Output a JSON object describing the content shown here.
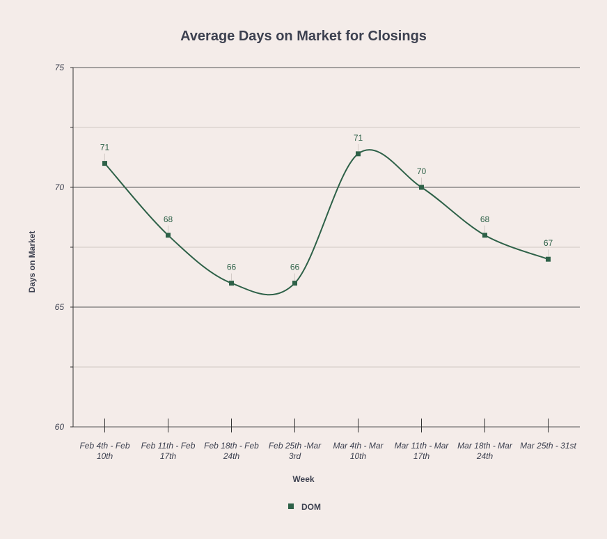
{
  "chart_data": {
    "type": "line",
    "title": "Average Days on Market for Closings",
    "xlabel": "Week",
    "ylabel": "Days on Market",
    "ylim": [
      60,
      75
    ],
    "y_ticks": [
      "60",
      "65",
      "70",
      "75"
    ],
    "grid": true,
    "smooth": true,
    "legend_position": "bottom",
    "categories": [
      [
        "Feb 4th - Feb",
        "10th"
      ],
      [
        "Feb 11th - Feb",
        "17th"
      ],
      [
        "Feb 18th - Feb",
        "24th"
      ],
      [
        "Feb 25th -Mar",
        "3rd"
      ],
      [
        "Mar 4th - Mar",
        "10th"
      ],
      [
        "Mar 11th - Mar",
        "17th"
      ],
      [
        "Mar 18th - Mar",
        "24th"
      ],
      [
        "Mar 25th - 31st"
      ]
    ],
    "series": [
      {
        "name": "DOM",
        "color": "#2e6148",
        "values": [
          71,
          68,
          66,
          66,
          71.4,
          70,
          68,
          67
        ],
        "data_labels": [
          "71",
          "68",
          "66",
          "66",
          "71",
          "70",
          "68",
          "67"
        ]
      }
    ]
  }
}
